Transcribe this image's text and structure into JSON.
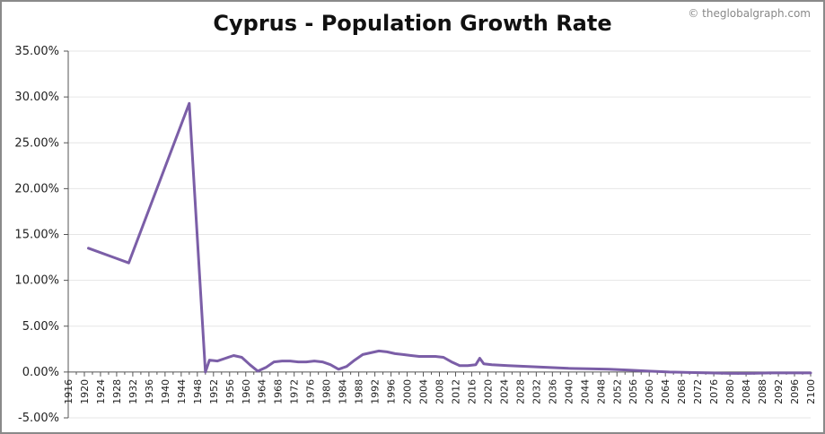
{
  "credit": "© theglobalgraph.com",
  "chart_data": {
    "type": "line",
    "title": "Cyprus - Population Growth Rate",
    "xlabel": "",
    "ylabel": "",
    "xlim": [
      1916,
      2100
    ],
    "ylim": [
      -5,
      35
    ],
    "y_ticks": [
      "-5.00%",
      "0.00%",
      "5.00%",
      "10.00%",
      "15.00%",
      "20.00%",
      "25.00%",
      "30.00%",
      "35.00%"
    ],
    "x_ticks": [
      1916,
      1920,
      1924,
      1928,
      1932,
      1936,
      1940,
      1944,
      1948,
      1952,
      1956,
      1960,
      1964,
      1968,
      1972,
      1976,
      1980,
      1984,
      1988,
      1992,
      1996,
      2000,
      2004,
      2008,
      2012,
      2016,
      2020,
      2024,
      2028,
      2032,
      2036,
      2040,
      2044,
      2048,
      2052,
      2056,
      2060,
      2064,
      2068,
      2072,
      2076,
      2080,
      2084,
      2088,
      2092,
      2096,
      2100
    ],
    "grid": true,
    "colors": {
      "line": "#7b5ea7",
      "grid": "#e6e6e6",
      "axis": "#555555"
    },
    "series": [
      {
        "x": [
          1921,
          1931,
          1946,
          1950,
          1951,
          1953,
          1955,
          1957,
          1959,
          1961,
          1963,
          1965,
          1967,
          1969,
          1971,
          1973,
          1975,
          1977,
          1979,
          1981,
          1983,
          1985,
          1987,
          1989,
          1991,
          1993,
          1995,
          1997,
          1999,
          2001,
          2003,
          2005,
          2007,
          2009,
          2011,
          2013,
          2015,
          2017,
          2018,
          2019,
          2021,
          2025,
          2030,
          2035,
          2040,
          2045,
          2050,
          2055,
          2060,
          2065,
          2070,
          2075,
          2080,
          2085,
          2090,
          2095,
          2100
        ],
        "values": [
          13.5,
          11.9,
          29.3,
          0.0,
          1.3,
          1.2,
          1.5,
          1.8,
          1.6,
          0.8,
          0.1,
          0.5,
          1.1,
          1.2,
          1.2,
          1.1,
          1.1,
          1.2,
          1.1,
          0.8,
          0.3,
          0.6,
          1.3,
          1.9,
          2.1,
          2.3,
          2.2,
          2.0,
          1.9,
          1.8,
          1.7,
          1.7,
          1.7,
          1.6,
          1.1,
          0.7,
          0.7,
          0.8,
          1.5,
          0.9,
          0.8,
          0.7,
          0.6,
          0.5,
          0.4,
          0.35,
          0.3,
          0.2,
          0.1,
          0.0,
          -0.05,
          -0.1,
          -0.15,
          -0.15,
          -0.1,
          -0.1,
          -0.1
        ]
      }
    ]
  }
}
